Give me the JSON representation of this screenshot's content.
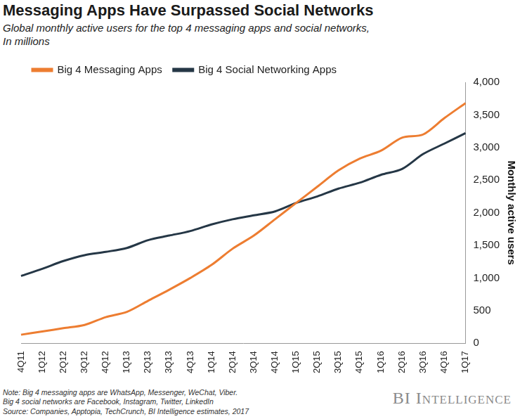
{
  "chart_data": {
    "type": "line",
    "title": "Messaging Apps Have Surpassed Social Networks",
    "subtitle": [
      "Global monthly active users for the top 4 messaging apps and social networks,",
      "In millions"
    ],
    "y_label": "Monthly active users",
    "categories": [
      "4Q11",
      "1Q12",
      "2Q12",
      "3Q12",
      "4Q12",
      "1Q13",
      "2Q13",
      "3Q13",
      "4Q13",
      "1Q14",
      "2Q14",
      "3Q14",
      "4Q14",
      "1Q15",
      "2Q15",
      "3Q15",
      "4Q15",
      "1Q16",
      "2Q16",
      "3Q16",
      "4Q16",
      "1Q17"
    ],
    "series": [
      {
        "name": "Big 4 Messaging Apps",
        "color": "#ed7d31",
        "marker": "none",
        "values": [
          130,
          180,
          230,
          280,
          400,
          480,
          650,
          820,
          1000,
          1200,
          1450,
          1650,
          1900,
          2150,
          2400,
          2650,
          2830,
          2950,
          3150,
          3200,
          3450,
          3680
        ]
      },
      {
        "name": "Big 4 Social Networking Apps",
        "color": "#253746",
        "marker": "none",
        "values": [
          1030,
          1140,
          1260,
          1350,
          1400,
          1460,
          1580,
          1650,
          1720,
          1820,
          1900,
          1960,
          2020,
          2150,
          2250,
          2370,
          2460,
          2580,
          2670,
          2900,
          3060,
          3220
        ]
      }
    ],
    "ylim": [
      0,
      4000
    ],
    "yticks": [
      0,
      500,
      {
        "value": 1000,
        "label": "1,000"
      },
      {
        "value": 1500,
        "label": "1,500"
      },
      {
        "value": 2000,
        "label": "2,000"
      },
      {
        "value": 2500,
        "label": "2,500"
      },
      {
        "value": 3000,
        "label": "3,000"
      },
      {
        "value": 3500,
        "label": "3,500"
      },
      {
        "value": 4000,
        "label": "4,000"
      }
    ],
    "grid": false,
    "legend": "top",
    "notes": [
      "Note: Big 4 messaging apps are WhatsApp, Messenger, WeChat, Viber.",
      "Big 4 social networks are Facebook, Instagram, Twitter, LinkedIn",
      "Source: Companies,  Apptopia, TechCrunch,  BI Intelligence estimates, 2017"
    ],
    "logo": "BI Intelligence"
  }
}
